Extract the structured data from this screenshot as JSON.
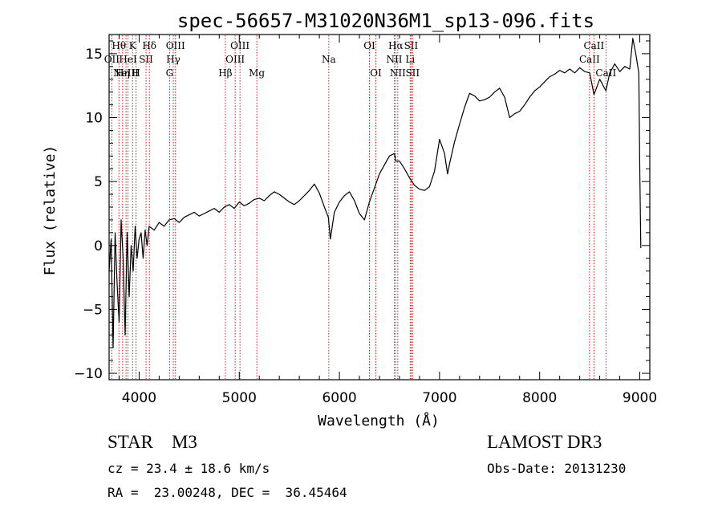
{
  "chart_data": {
    "type": "line",
    "title": "spec-56657-M31020N36M1_sp13-096.fits",
    "xlabel": "Wavelength (Å)",
    "ylabel": "Flux (relative)",
    "xlim": [
      3700,
      9100
    ],
    "ylim": [
      -10.5,
      16.5
    ],
    "xticks": [
      4000,
      5000,
      6000,
      7000,
      8000,
      9000
    ],
    "yticks": [
      -10,
      -5,
      0,
      5,
      10,
      15
    ],
    "series": [
      {
        "name": "spectrum",
        "x": [
          3700,
          3720,
          3740,
          3760,
          3780,
          3800,
          3820,
          3840,
          3860,
          3880,
          3900,
          3920,
          3940,
          3960,
          3980,
          4000,
          4020,
          4040,
          4060,
          4080,
          4100,
          4150,
          4200,
          4250,
          4300,
          4350,
          4400,
          4450,
          4500,
          4550,
          4600,
          4650,
          4700,
          4750,
          4800,
          4850,
          4900,
          4950,
          5000,
          5050,
          5100,
          5150,
          5200,
          5250,
          5300,
          5350,
          5400,
          5450,
          5500,
          5550,
          5600,
          5650,
          5700,
          5750,
          5800,
          5850,
          5890,
          5910,
          5950,
          6000,
          6050,
          6100,
          6150,
          6200,
          6250,
          6300,
          6350,
          6400,
          6450,
          6500,
          6550,
          6563,
          6600,
          6650,
          6700,
          6750,
          6800,
          6850,
          6900,
          6950,
          7000,
          7050,
          7080,
          7100,
          7150,
          7200,
          7250,
          7300,
          7350,
          7400,
          7450,
          7500,
          7550,
          7600,
          7650,
          7700,
          7750,
          7800,
          7850,
          7900,
          7950,
          8000,
          8050,
          8100,
          8150,
          8200,
          8250,
          8300,
          8350,
          8400,
          8450,
          8500,
          8542,
          8600,
          8662,
          8700,
          8750,
          8800,
          8850,
          8900,
          8930,
          8960,
          8990,
          9000,
          9010
        ],
        "y": [
          -2,
          0.5,
          -8,
          1,
          -3,
          -6,
          2,
          -1,
          -7,
          1,
          -4,
          0,
          -2,
          1.5,
          -1,
          0.5,
          1,
          -1,
          1.2,
          0,
          1.5,
          1.2,
          1.8,
          1.5,
          2,
          2.1,
          1.8,
          2.2,
          2.4,
          2.6,
          2.3,
          2.5,
          2.7,
          2.9,
          2.6,
          3,
          3.2,
          2.9,
          3.4,
          3.1,
          3.3,
          3.6,
          3.7,
          3.5,
          3.9,
          4.2,
          4,
          3.7,
          3.4,
          3.2,
          3.5,
          3.9,
          4.3,
          4.8,
          4.1,
          3,
          2.2,
          0.5,
          2.6,
          3.4,
          3.9,
          4.2,
          3.5,
          2.5,
          2,
          3.4,
          4.5,
          5.6,
          6.3,
          7,
          7.2,
          6.6,
          6.6,
          6,
          5.3,
          4.7,
          4.4,
          4.3,
          4.6,
          5.8,
          8.3,
          7.2,
          5.6,
          6.4,
          8.1,
          9.5,
          10.8,
          11.9,
          11.7,
          11.3,
          11.4,
          11.6,
          12,
          12.3,
          11.6,
          10,
          10.3,
          10.5,
          11,
          11.6,
          12.1,
          12.4,
          12.8,
          13.2,
          13.4,
          13.7,
          13.5,
          13.8,
          13.5,
          13.9,
          13.6,
          13.5,
          11.8,
          13,
          12.1,
          13.5,
          14.2,
          13.6,
          14,
          13.8,
          16.2,
          15,
          13.5,
          6,
          -0.2
        ]
      }
    ],
    "line_markers": [
      {
        "x": 3727,
        "row": 1,
        "label": "OII"
      },
      {
        "x": 3798,
        "row": 0,
        "label": "Hθ"
      },
      {
        "x": 3835,
        "row": 2,
        "label": "Hη"
      },
      {
        "x": 3869,
        "row": 2,
        "label": "NeIII"
      },
      {
        "x": 3889,
        "row": 1,
        "label": "HeI"
      },
      {
        "x": 3934,
        "row": 0,
        "label": "K"
      },
      {
        "x": 3969,
        "row": 2,
        "label": "H"
      },
      {
        "x": 4069,
        "row": 1,
        "label": "SII"
      },
      {
        "x": 4102,
        "row": 0,
        "label": "Hδ"
      },
      {
        "x": 4304,
        "row": 2,
        "label": "G"
      },
      {
        "x": 4341,
        "row": 1,
        "label": "Hγ"
      },
      {
        "x": 4363,
        "row": 0,
        "label": "OIII"
      },
      {
        "x": 4861,
        "row": 2,
        "label": "Hβ"
      },
      {
        "x": 4959,
        "row": 1,
        "label": "OIII"
      },
      {
        "x": 5007,
        "row": 0,
        "label": "OIII"
      },
      {
        "x": 5175,
        "row": 2,
        "label": "Mg"
      },
      {
        "x": 5894,
        "row": 1,
        "label": "Na"
      },
      {
        "x": 6300,
        "row": 0,
        "label": "OI"
      },
      {
        "x": 6364,
        "row": 2,
        "label": "OI"
      },
      {
        "x": 6548,
        "row": 1,
        "label": "NII"
      },
      {
        "x": 6563,
        "row": 0,
        "label": "Hα"
      },
      {
        "x": 6583,
        "row": 2,
        "label": "NII"
      },
      {
        "x": 6707,
        "row": 1,
        "label": "Li"
      },
      {
        "x": 6716,
        "row": 0,
        "label": "SII"
      },
      {
        "x": 6731,
        "row": 2,
        "label": "SII"
      },
      {
        "x": 8498,
        "row": 1,
        "label": "CaII"
      },
      {
        "x": 8542,
        "row": 0,
        "label": "CaII"
      },
      {
        "x": 8662,
        "row": 2,
        "label": "CaII"
      }
    ]
  },
  "info": {
    "class_text": "STAR    M3",
    "survey": "LAMOST DR3",
    "cz": "cz = 23.4 ± 18.6 km/s",
    "obs_date": "Obs-Date: 20131230",
    "coords": "RA =  23.00248, DEC =  36.45464"
  },
  "colors": {
    "line": "#000000",
    "marker": "#cc0000",
    "axes": "#000000"
  }
}
